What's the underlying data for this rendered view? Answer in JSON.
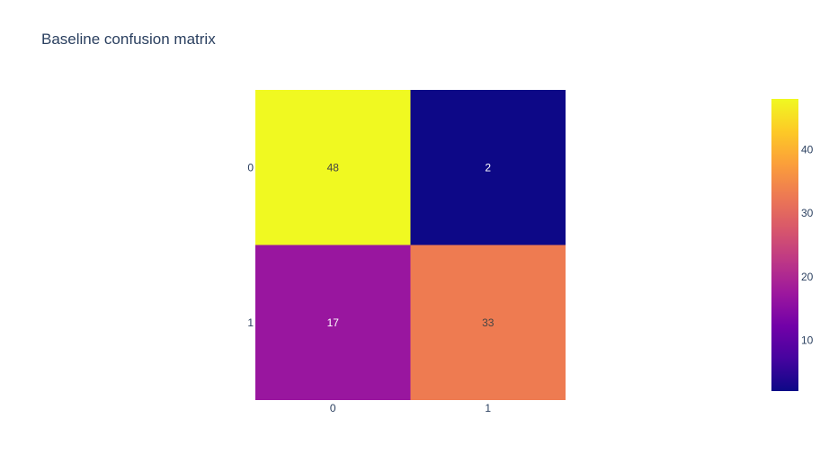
{
  "chart_data": {
    "type": "heatmap",
    "title": "Baseline confusion matrix",
    "x_categories": [
      "0",
      "1"
    ],
    "y_categories": [
      "0",
      "1"
    ],
    "z": [
      [
        48,
        2
      ],
      [
        17,
        33
      ]
    ],
    "text_colors": [
      [
        "#444444",
        "#ffffff"
      ],
      [
        "#ffffff",
        "#444444"
      ]
    ],
    "zmin": 2,
    "zmax": 48,
    "colorscale": [
      "#0d0887",
      "#46039f",
      "#7201a8",
      "#9c179e",
      "#bd3786",
      "#d8576b",
      "#ed7953",
      "#fb9f3a",
      "#fdca26",
      "#f0f921"
    ],
    "colorbar": {
      "ticks": [
        10,
        20,
        30,
        40
      ]
    },
    "xlabel": "",
    "ylabel": ""
  }
}
